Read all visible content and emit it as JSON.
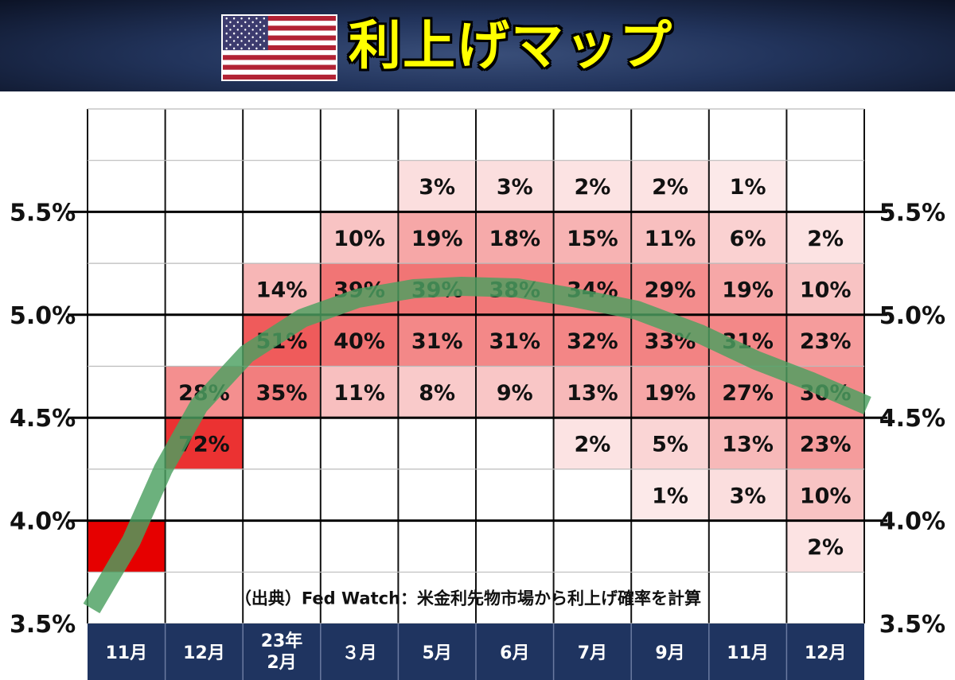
{
  "header": {
    "title": "利上げマップ",
    "flag_icon": "us-flag-icon"
  },
  "chart_data": {
    "type": "heatmap",
    "title": "利上げマップ",
    "columns": [
      "11月",
      "12月",
      "23年\n2月",
      "３月",
      "5月",
      "6月",
      "7月",
      "9月",
      "11月",
      "12月"
    ],
    "y_ticks": [
      "5.5%",
      "5.0%",
      "4.5%",
      "4.0%",
      "3.5%"
    ],
    "source_note": "（出典）Fed Watch：米金利先物市場から利上げ確率を計算",
    "rows": [
      {
        "band": "5.75-6.00",
        "values": [
          null,
          null,
          null,
          null,
          null,
          null,
          null,
          null,
          null,
          null
        ]
      },
      {
        "band": "5.50-5.75",
        "values": [
          null,
          null,
          null,
          null,
          3,
          3,
          2,
          2,
          1,
          null
        ]
      },
      {
        "band": "5.25-5.50",
        "values": [
          null,
          null,
          null,
          10,
          19,
          18,
          15,
          11,
          6,
          2
        ]
      },
      {
        "band": "5.00-5.25",
        "values": [
          null,
          null,
          14,
          39,
          39,
          38,
          34,
          29,
          19,
          10
        ]
      },
      {
        "band": "4.75-5.00",
        "values": [
          null,
          null,
          51,
          40,
          31,
          31,
          32,
          33,
          31,
          23
        ]
      },
      {
        "band": "4.50-4.75",
        "values": [
          null,
          28,
          35,
          11,
          8,
          9,
          13,
          19,
          27,
          30
        ]
      },
      {
        "band": "4.25-4.50",
        "values": [
          null,
          72,
          null,
          null,
          null,
          null,
          2,
          5,
          13,
          23
        ]
      },
      {
        "band": "4.00-4.25",
        "values": [
          null,
          null,
          null,
          null,
          null,
          null,
          null,
          1,
          3,
          10
        ]
      },
      {
        "band": "3.75-4.00",
        "values": [
          100,
          null,
          null,
          null,
          null,
          null,
          null,
          null,
          null,
          2
        ]
      }
    ],
    "value_suffix": "%",
    "hidden_labels": [
      {
        "row": 8,
        "col": 0
      }
    ],
    "trend_line_color": "#4ca060",
    "heat_color_low": "#fdf3f3",
    "heat_color_high": "#e60000",
    "month_bar_color": "#1f3460"
  }
}
